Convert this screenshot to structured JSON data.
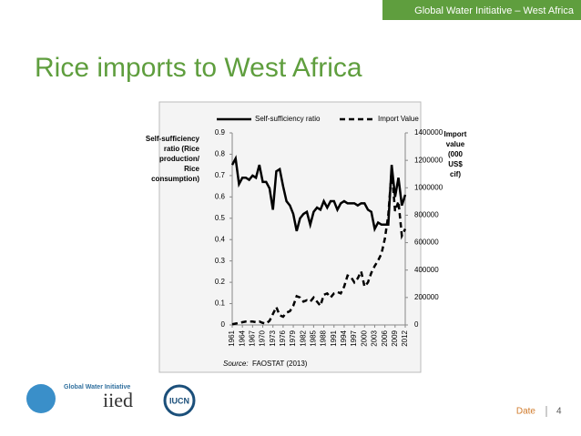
{
  "header": {
    "banner": "Global Water Initiative – West Africa",
    "title": "Rice imports to West Africa"
  },
  "chart_data": {
    "type": "line",
    "x": [
      1961,
      1962,
      1963,
      1964,
      1965,
      1966,
      1967,
      1968,
      1969,
      1970,
      1971,
      1972,
      1973,
      1974,
      1975,
      1976,
      1977,
      1978,
      1979,
      1980,
      1981,
      1982,
      1983,
      1984,
      1985,
      1986,
      1987,
      1988,
      1989,
      1990,
      1991,
      1992,
      1993,
      1994,
      1995,
      1996,
      1997,
      1998,
      1999,
      2000,
      2001,
      2002,
      2003,
      2004,
      2005,
      2006,
      2007,
      2008,
      2009,
      2010,
      2011,
      2012
    ],
    "xlim": [
      1961,
      2012
    ],
    "xticks": [
      1961,
      1964,
      1967,
      1970,
      1973,
      1976,
      1979,
      1982,
      1985,
      1988,
      1991,
      1994,
      1997,
      2000,
      2003,
      2006,
      2009,
      2012
    ],
    "ylim": [
      0,
      0.9
    ],
    "yticks": [
      0,
      0.1,
      0.2,
      0.3,
      0.4,
      0.5,
      0.6,
      0.7,
      0.8,
      0.9
    ],
    "y2lim": [
      0,
      1400000
    ],
    "y2ticks": [
      0,
      200000,
      400000,
      600000,
      800000,
      1000000,
      1200000,
      1400000
    ],
    "ylabel": [
      "Self-sufficiency",
      "ratio (Rice",
      "production/",
      "Rice",
      "consumption)"
    ],
    "y2label": [
      "Import",
      "value",
      "(000",
      "US$",
      "cif)"
    ],
    "legend": "top",
    "series": [
      {
        "name": "Self-sufficiency ratio",
        "color": "#000000",
        "style": "solid",
        "values": [
          0.75,
          0.78,
          0.66,
          0.69,
          0.69,
          0.68,
          0.7,
          0.69,
          0.75,
          0.67,
          0.67,
          0.64,
          0.54,
          0.72,
          0.73,
          0.65,
          0.58,
          0.56,
          0.52,
          0.44,
          0.5,
          0.52,
          0.53,
          0.47,
          0.53,
          0.55,
          0.54,
          0.58,
          0.55,
          0.58,
          0.58,
          0.54,
          0.57,
          0.58,
          0.57,
          0.57,
          0.57,
          0.56,
          0.57,
          0.57,
          0.54,
          0.53,
          0.45,
          0.48,
          0.47,
          0.47,
          0.47,
          0.75,
          0.6,
          0.69,
          0.56,
          0.61
        ]
      },
      {
        "name": "Import Value",
        "color": "#000000",
        "style": "dashed",
        "axis": "y2",
        "values": [
          5000,
          10000,
          15000,
          20000,
          25000,
          25000,
          25000,
          20000,
          25000,
          15000,
          10000,
          30000,
          80000,
          130000,
          70000,
          60000,
          90000,
          100000,
          140000,
          210000,
          200000,
          170000,
          180000,
          170000,
          200000,
          170000,
          140000,
          220000,
          230000,
          200000,
          230000,
          240000,
          230000,
          280000,
          360000,
          350000,
          310000,
          340000,
          390000,
          280000,
          310000,
          380000,
          430000,
          470000,
          520000,
          630000,
          800000,
          1130000,
          830000,
          900000,
          650000,
          700000
        ]
      }
    ],
    "source_label": "Source:",
    "source_text": "FAOSTAT (2013)"
  },
  "logos": {
    "gwi": "Global Water Initiative",
    "iied": "iied",
    "iucn": "IUCN"
  },
  "footer": {
    "date": "Date",
    "page": "4"
  }
}
